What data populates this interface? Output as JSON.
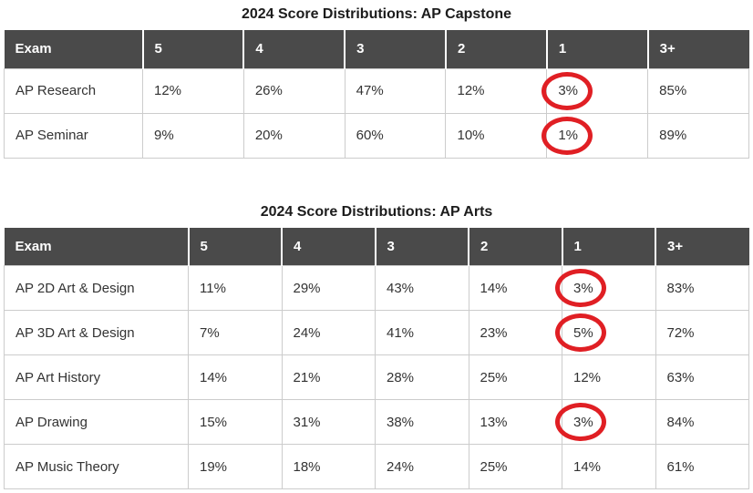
{
  "colors": {
    "header_bg": "#4a4a4a",
    "header_text": "#ffffff",
    "body_text": "#333333",
    "cell_border": "#cccccc",
    "title_text": "#1c1c1c",
    "circle_annotation": "#e01f24",
    "page_bg": "#ffffff"
  },
  "chart_data": [
    {
      "type": "table",
      "title": "2024 Score Distributions: AP Capstone",
      "columns": [
        "Exam",
        "5",
        "4",
        "3",
        "2",
        "1",
        "3+"
      ],
      "rows": [
        [
          "AP Research",
          "12%",
          "26%",
          "47%",
          "12%",
          "3%",
          "85%"
        ],
        [
          "AP Seminar",
          "9%",
          "20%",
          "60%",
          "10%",
          "1%",
          "89%"
        ]
      ],
      "red_circled_cells": [
        {
          "row": "AP Research",
          "column": "1",
          "value": "3%"
        },
        {
          "row": "AP Seminar",
          "column": "1",
          "value": "1%"
        }
      ]
    },
    {
      "type": "table",
      "title": "2024 Score Distributions: AP Arts",
      "columns": [
        "Exam",
        "5",
        "4",
        "3",
        "2",
        "1",
        "3+"
      ],
      "rows": [
        [
          "AP 2D Art & Design",
          "11%",
          "29%",
          "43%",
          "14%",
          "3%",
          "83%"
        ],
        [
          "AP 3D Art & Design",
          "7%",
          "24%",
          "41%",
          "23%",
          "5%",
          "72%"
        ],
        [
          "AP Art History",
          "14%",
          "21%",
          "28%",
          "25%",
          "12%",
          "63%"
        ],
        [
          "AP Drawing",
          "15%",
          "31%",
          "38%",
          "13%",
          "3%",
          "84%"
        ],
        [
          "AP Music Theory",
          "19%",
          "18%",
          "24%",
          "25%",
          "14%",
          "61%"
        ]
      ],
      "red_circled_cells": [
        {
          "row": "AP 2D Art & Design",
          "column": "1",
          "value": "3%"
        },
        {
          "row": "AP 3D Art & Design",
          "column": "1",
          "value": "5%"
        },
        {
          "row": "AP Drawing",
          "column": "1",
          "value": "3%"
        }
      ]
    }
  ]
}
